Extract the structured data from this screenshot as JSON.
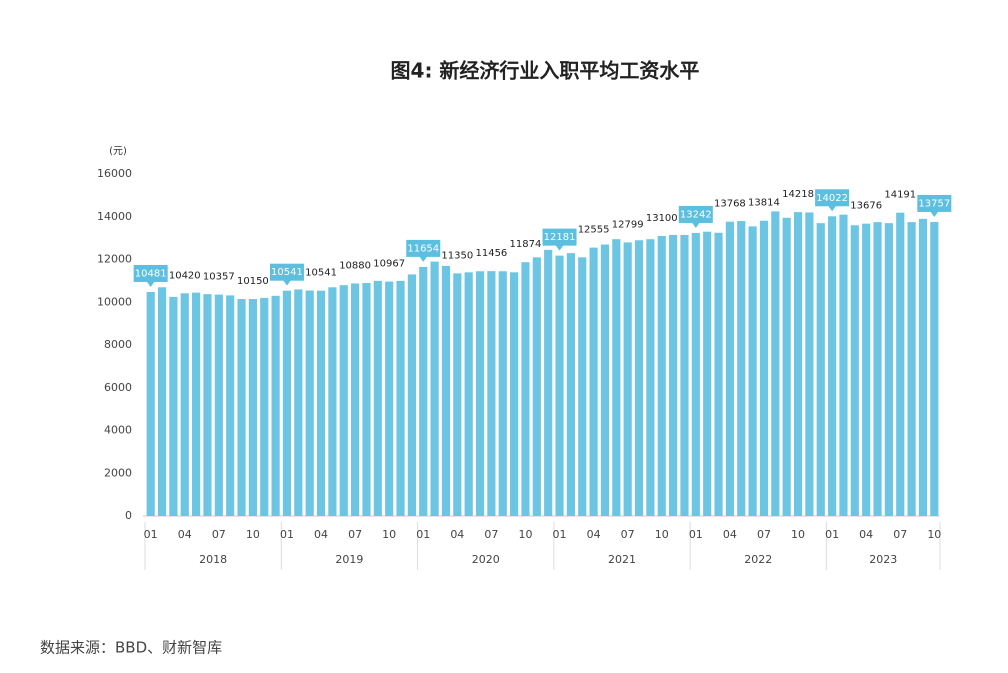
{
  "chart_data": {
    "type": "bar",
    "title": "图4: 新经济行业入职平均工资水平",
    "y_unit": "(元)",
    "source": "数据来源：BBD、财新智库",
    "color": "#6cc6e3",
    "callout_color": "#5cbfe0",
    "categories": [
      "01",
      null,
      null,
      "04",
      null,
      null,
      "07",
      null,
      null,
      "10",
      null,
      null,
      "01",
      null,
      null,
      "04",
      null,
      null,
      "07",
      null,
      null,
      "10",
      null,
      null,
      "01",
      null,
      null,
      "04",
      null,
      null,
      "07",
      null,
      null,
      "10",
      null,
      null,
      "01",
      null,
      null,
      "04",
      null,
      null,
      "07",
      null,
      null,
      "10",
      null,
      null,
      "01",
      null,
      null,
      "04",
      null,
      null,
      "07",
      null,
      null,
      "10",
      null,
      null,
      "01",
      null,
      null,
      "04",
      null,
      null,
      "07",
      null,
      null,
      "10"
    ],
    "years": [
      "2018",
      "2019",
      "2020",
      "2021",
      "2022",
      "2023"
    ],
    "values": [
      10481,
      10700,
      10250,
      10420,
      10450,
      10380,
      10357,
      10320,
      10150,
      10150,
      10200,
      10300,
      10541,
      10600,
      10550,
      10541,
      10700,
      10800,
      10880,
      10900,
      11000,
      10967,
      11000,
      11300,
      11654,
      11900,
      11700,
      11350,
      11400,
      11450,
      11456,
      11450,
      11400,
      11874,
      12100,
      12450,
      12181,
      12300,
      12100,
      12555,
      12700,
      12950,
      12799,
      12900,
      12950,
      13100,
      13150,
      13150,
      13242,
      13300,
      13250,
      13768,
      13800,
      13550,
      13814,
      14250,
      13950,
      14218,
      14200,
      13700,
      14022,
      14100,
      13600,
      13676,
      13750,
      13700,
      14191,
      13750,
      13900,
      13757
    ],
    "value_labels": [
      "10481",
      null,
      null,
      "10420",
      null,
      null,
      "10357",
      null,
      null,
      "10150",
      null,
      null,
      "10541",
      null,
      null,
      "10541",
      null,
      null,
      "10880",
      null,
      null,
      "10967",
      null,
      null,
      "11654",
      null,
      null,
      "11350",
      null,
      null,
      "11456",
      null,
      null,
      "11874",
      null,
      null,
      "12181",
      null,
      null,
      "12555",
      null,
      null,
      "12799",
      null,
      null,
      "13100",
      null,
      null,
      "13242",
      null,
      null,
      "13768",
      null,
      null,
      "13814",
      null,
      null,
      "14218",
      null,
      null,
      "14022",
      null,
      null,
      "13676",
      null,
      null,
      "14191",
      null,
      null,
      "13757"
    ],
    "ylim": [
      0,
      16000
    ],
    "yticks": [
      0,
      2000,
      4000,
      6000,
      8000,
      10000,
      12000,
      14000,
      16000
    ]
  }
}
